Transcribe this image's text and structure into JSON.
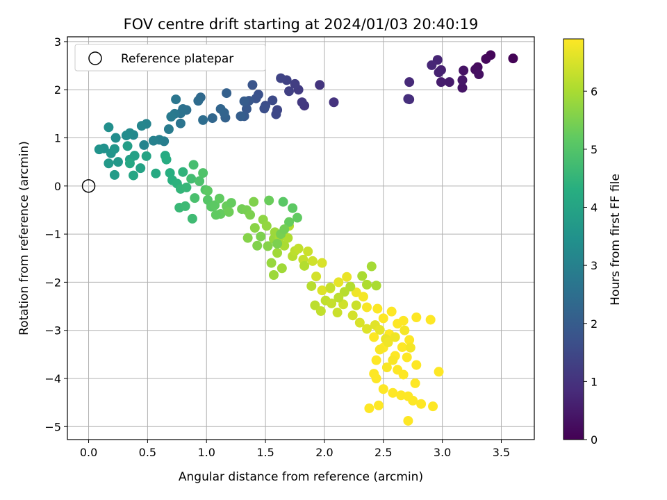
{
  "chart_data": {
    "type": "scatter",
    "title": "FOV centre drift starting at 2024/01/03 20:40:19",
    "xlabel": "Angular distance from reference (arcmin)",
    "ylabel": "Rotation from reference (arcmin)",
    "xlim": [
      -0.18,
      3.78
    ],
    "ylim": [
      -5.27,
      3.1
    ],
    "xticks": [
      "0.0",
      "0.5",
      "1.0",
      "1.5",
      "2.0",
      "2.5",
      "3.0",
      "3.5"
    ],
    "xtick_values": [
      0,
      0.5,
      1,
      1.5,
      2,
      2.5,
      3,
      3.5
    ],
    "yticks": [
      "−5",
      "−4",
      "−3",
      "−2",
      "−1",
      "0",
      "1",
      "2",
      "3"
    ],
    "ytick_values": [
      -5,
      -4,
      -3,
      -2,
      -1,
      0,
      1,
      2,
      3
    ],
    "grid": true,
    "legend": {
      "placement": "upper-left",
      "entries": [
        "Reference platepar"
      ]
    },
    "reference_point": {
      "x": 0,
      "y": 0,
      "marker": "open-circle"
    },
    "colorbar": {
      "label": "Hours from first FF file",
      "range": [
        0,
        6.9
      ],
      "ticks": [
        "0",
        "1",
        "2",
        "3",
        "4",
        "5",
        "6"
      ],
      "tick_values": [
        0,
        1,
        2,
        3,
        4,
        5,
        6
      ],
      "colormap": "viridis"
    },
    "points": [
      [
        3.6,
        2.65,
        0.05
      ],
      [
        3.41,
        2.72,
        0.1
      ],
      [
        3.37,
        2.64,
        0.15
      ],
      [
        3.3,
        2.47,
        0.2
      ],
      [
        3.28,
        2.42,
        0.25
      ],
      [
        3.31,
        2.32,
        0.3
      ],
      [
        3.18,
        2.4,
        0.35
      ],
      [
        3.17,
        2.04,
        0.4
      ],
      [
        3.17,
        2.2,
        0.45
      ],
      [
        3.06,
        2.16,
        0.5
      ],
      [
        2.99,
        2.16,
        0.55
      ],
      [
        2.99,
        2.41,
        0.6
      ],
      [
        2.97,
        2.36,
        0.65
      ],
      [
        2.96,
        2.62,
        0.7
      ],
      [
        2.91,
        2.51,
        0.75
      ],
      [
        2.72,
        2.16,
        0.8
      ],
      [
        2.72,
        1.8,
        0.85
      ],
      [
        2.71,
        1.81,
        0.9
      ],
      [
        2.08,
        1.74,
        1.0
      ],
      [
        1.96,
        2.1,
        1.05
      ],
      [
        1.83,
        1.67,
        1.1
      ],
      [
        1.81,
        1.74,
        1.15
      ],
      [
        1.78,
        2.0,
        1.2
      ],
      [
        1.75,
        2.12,
        1.25
      ],
      [
        1.7,
        1.97,
        1.3
      ],
      [
        1.68,
        2.2,
        1.35
      ],
      [
        1.63,
        2.24,
        1.4
      ],
      [
        1.6,
        1.58,
        1.45
      ],
      [
        1.59,
        1.49,
        1.5
      ],
      [
        1.56,
        1.78,
        1.55
      ],
      [
        1.5,
        1.67,
        1.6
      ],
      [
        1.49,
        1.61,
        1.65
      ],
      [
        1.44,
        1.9,
        1.7
      ],
      [
        1.42,
        1.82,
        1.75
      ],
      [
        1.39,
        2.1,
        1.8
      ],
      [
        1.36,
        1.77,
        1.85
      ],
      [
        1.34,
        1.6,
        1.9
      ],
      [
        1.32,
        1.45,
        1.95
      ],
      [
        1.32,
        1.76,
        2.0
      ],
      [
        1.29,
        1.45,
        2.05
      ],
      [
        1.17,
        1.93,
        2.1
      ],
      [
        1.16,
        1.42,
        2.15
      ],
      [
        1.15,
        1.52,
        2.2
      ],
      [
        1.12,
        1.6,
        2.25
      ],
      [
        1.05,
        1.41,
        2.3
      ],
      [
        0.95,
        1.84,
        2.35
      ],
      [
        0.93,
        1.77,
        2.4
      ],
      [
        0.97,
        1.37,
        2.45
      ],
      [
        0.83,
        1.58,
        2.5
      ],
      [
        0.8,
        1.6,
        2.55
      ],
      [
        0.78,
        1.51,
        2.6
      ],
      [
        0.78,
        1.3,
        2.65
      ],
      [
        0.74,
        1.8,
        2.7
      ],
      [
        0.73,
        1.5,
        2.75
      ],
      [
        0.7,
        1.44,
        2.8
      ],
      [
        0.68,
        1.18,
        2.85
      ],
      [
        0.64,
        0.93,
        2.9
      ],
      [
        0.6,
        0.96,
        2.95
      ],
      [
        0.55,
        0.94,
        3.0
      ],
      [
        0.49,
        1.29,
        3.05
      ],
      [
        0.47,
        0.85,
        3.1
      ],
      [
        0.45,
        1.25,
        3.15
      ],
      [
        0.38,
        1.06,
        3.2
      ],
      [
        0.35,
        1.1,
        3.25
      ],
      [
        0.32,
        1.05,
        3.3
      ],
      [
        0.23,
        1.0,
        3.35
      ],
      [
        0.17,
        1.22,
        3.4
      ],
      [
        0.13,
        0.78,
        3.45
      ],
      [
        0.09,
        0.76,
        3.5
      ],
      [
        0.19,
        0.68,
        3.55
      ],
      [
        0.22,
        0.77,
        3.6
      ],
      [
        0.25,
        0.5,
        3.65
      ],
      [
        0.17,
        0.47,
        3.7
      ],
      [
        0.22,
        0.23,
        3.75
      ],
      [
        0.33,
        0.83,
        3.8
      ],
      [
        0.35,
        0.55,
        3.85
      ],
      [
        0.39,
        0.63,
        3.9
      ],
      [
        0.44,
        0.37,
        3.95
      ],
      [
        0.49,
        0.62,
        4.0
      ],
      [
        0.38,
        0.22,
        4.05
      ],
      [
        0.35,
        0.47,
        4.1
      ],
      [
        0.57,
        0.26,
        4.15
      ],
      [
        0.65,
        0.63,
        4.2
      ],
      [
        0.66,
        0.55,
        4.25
      ],
      [
        0.69,
        0.27,
        4.3
      ],
      [
        0.71,
        0.12,
        4.35
      ],
      [
        0.75,
        0.05,
        4.4
      ],
      [
        0.8,
        0.29,
        4.45
      ],
      [
        0.78,
        -0.06,
        4.5
      ],
      [
        0.83,
        -0.03,
        4.55
      ],
      [
        0.77,
        -0.45,
        4.6
      ],
      [
        0.82,
        -0.42,
        4.65
      ],
      [
        0.88,
        -0.68,
        4.7
      ],
      [
        0.87,
        0.15,
        4.75
      ],
      [
        0.89,
        0.44,
        4.8
      ],
      [
        0.9,
        -0.25,
        4.85
      ],
      [
        0.94,
        0.1,
        4.9
      ],
      [
        0.97,
        0.27,
        4.95
      ],
      [
        0.99,
        -0.08,
        5.0
      ],
      [
        1.01,
        -0.29,
        5.05
      ],
      [
        1.04,
        -0.43,
        5.1
      ],
      [
        1.07,
        -0.4,
        5.15
      ],
      [
        1.11,
        -0.26,
        5.2
      ],
      [
        1.12,
        -0.58,
        5.25
      ],
      [
        1.17,
        -0.42,
        5.3
      ],
      [
        1.19,
        -0.54,
        5.35
      ],
      [
        1.3,
        -0.48,
        5.4
      ],
      [
        1.34,
        -0.5,
        5.45
      ],
      [
        1.37,
        -0.6,
        5.5
      ],
      [
        1.4,
        -0.33,
        5.55
      ],
      [
        1.35,
        -1.08,
        5.6
      ],
      [
        1.41,
        -0.87,
        5.65
      ],
      [
        1.48,
        -0.7,
        5.7
      ],
      [
        1.51,
        -0.83,
        5.75
      ],
      [
        1.57,
        -1.1,
        5.8
      ],
      [
        1.58,
        -0.96,
        5.85
      ],
      [
        1.6,
        -1.39,
        5.9
      ],
      [
        1.62,
        -1.08,
        5.95
      ],
      [
        1.66,
        -1.24,
        6.0
      ],
      [
        1.69,
        -1.08,
        6.05
      ],
      [
        1.7,
        -0.83,
        6.1
      ],
      [
        1.73,
        -1.46,
        6.15
      ],
      [
        1.75,
        -1.35,
        6.2
      ],
      [
        1.78,
        -1.3,
        6.25
      ],
      [
        1.82,
        -1.53,
        6.3
      ],
      [
        1.86,
        -1.36,
        6.35
      ],
      [
        1.9,
        -1.56,
        6.4
      ],
      [
        1.93,
        -1.88,
        6.45
      ],
      [
        1.98,
        -1.6,
        6.5
      ],
      [
        1.98,
        -2.17,
        6.55
      ],
      [
        2.05,
        -2.13,
        6.6
      ],
      [
        2.12,
        -2.0,
        6.65
      ],
      [
        2.19,
        -1.89,
        6.7
      ],
      [
        2.27,
        -2.21,
        6.75
      ],
      [
        2.33,
        -2.3,
        6.8
      ],
      [
        2.36,
        -2.52,
        6.85
      ],
      [
        2.45,
        -2.55,
        6.88
      ],
      [
        2.5,
        -2.75,
        6.9
      ],
      [
        2.57,
        -2.61,
        6.9
      ],
      [
        2.62,
        -2.86,
        6.9
      ],
      [
        2.67,
        -2.8,
        6.9
      ],
      [
        2.72,
        -3.2,
        6.9
      ],
      [
        2.78,
        -2.73,
        6.9
      ],
      [
        2.9,
        -2.78,
        6.9
      ],
      [
        2.55,
        -3.08,
        6.9
      ],
      [
        2.5,
        -3.36,
        6.9
      ],
      [
        2.42,
        -3.14,
        6.9
      ],
      [
        2.44,
        -3.62,
        6.9
      ],
      [
        2.6,
        -3.53,
        6.9
      ],
      [
        2.66,
        -3.35,
        6.9
      ],
      [
        2.7,
        -3.56,
        6.9
      ],
      [
        2.78,
        -3.72,
        6.9
      ],
      [
        2.62,
        -3.82,
        6.9
      ],
      [
        2.44,
        -4.0,
        6.9
      ],
      [
        2.5,
        -4.22,
        6.9
      ],
      [
        2.58,
        -4.3,
        6.9
      ],
      [
        2.65,
        -4.35,
        6.9
      ],
      [
        2.71,
        -4.37,
        6.9
      ],
      [
        2.77,
        -4.1,
        6.9
      ],
      [
        2.75,
        -4.46,
        6.9
      ],
      [
        2.82,
        -4.53,
        6.9
      ],
      [
        2.92,
        -4.58,
        6.9
      ],
      [
        2.97,
        -3.86,
        6.9
      ],
      [
        2.71,
        -4.88,
        6.9
      ],
      [
        2.46,
        -4.56,
        6.9
      ],
      [
        2.38,
        -4.62,
        6.9
      ],
      [
        2.42,
        -3.9,
        6.9
      ],
      [
        1.65,
        -0.33,
        5.1
      ],
      [
        1.73,
        -0.46,
        5.15
      ],
      [
        1.77,
        -0.66,
        5.2
      ],
      [
        1.7,
        -0.75,
        5.25
      ],
      [
        1.53,
        -0.3,
        5.3
      ],
      [
        1.21,
        -0.35,
        5.25
      ],
      [
        1.08,
        -0.6,
        5.2
      ],
      [
        1.01,
        -0.1,
        5.15
      ],
      [
        1.55,
        -1.6,
        5.8
      ],
      [
        1.57,
        -1.85,
        5.85
      ],
      [
        1.64,
        -1.71,
        5.9
      ],
      [
        1.83,
        -1.66,
        6.1
      ],
      [
        1.89,
        -2.08,
        6.15
      ],
      [
        2.01,
        -2.38,
        6.25
      ],
      [
        2.06,
        -2.44,
        6.3
      ],
      [
        2.11,
        -2.63,
        6.35
      ],
      [
        2.16,
        -2.46,
        6.4
      ],
      [
        2.24,
        -2.69,
        6.45
      ],
      [
        2.3,
        -2.84,
        6.5
      ],
      [
        2.36,
        -2.97,
        6.55
      ],
      [
        2.43,
        -2.89,
        6.6
      ],
      [
        2.47,
        -2.99,
        6.65
      ],
      [
        2.52,
        -3.18,
        6.7
      ],
      [
        2.54,
        -3.25,
        6.75
      ],
      [
        2.6,
        -3.14,
        6.75
      ],
      [
        2.68,
        -3.0,
        6.8
      ],
      [
        2.73,
        -3.36,
        6.8
      ],
      [
        2.47,
        -3.4,
        6.85
      ],
      [
        2.53,
        -3.77,
        6.85
      ],
      [
        2.58,
        -3.62,
        6.85
      ],
      [
        2.67,
        -3.92,
        6.9
      ],
      [
        2.32,
        -1.87,
        6.0
      ],
      [
        2.36,
        -2.05,
        6.05
      ],
      [
        2.22,
        -2.09,
        6.1
      ],
      [
        2.17,
        -2.2,
        6.15
      ],
      [
        1.92,
        -2.48,
        6.2
      ],
      [
        1.97,
        -2.6,
        6.25
      ],
      [
        2.05,
        -2.11,
        6.3
      ],
      [
        2.4,
        -1.67,
        5.95
      ],
      [
        2.44,
        -2.07,
        6.0
      ],
      [
        2.12,
        -2.32,
        6.2
      ],
      [
        2.27,
        -2.48,
        6.35
      ],
      [
        1.6,
        -1.2,
        5.5
      ],
      [
        1.63,
        -1.0,
        5.45
      ],
      [
        1.66,
        -0.9,
        5.4
      ],
      [
        1.46,
        -1.05,
        5.5
      ],
      [
        1.52,
        -1.25,
        5.6
      ],
      [
        1.43,
        -1.24,
        5.55
      ]
    ]
  }
}
